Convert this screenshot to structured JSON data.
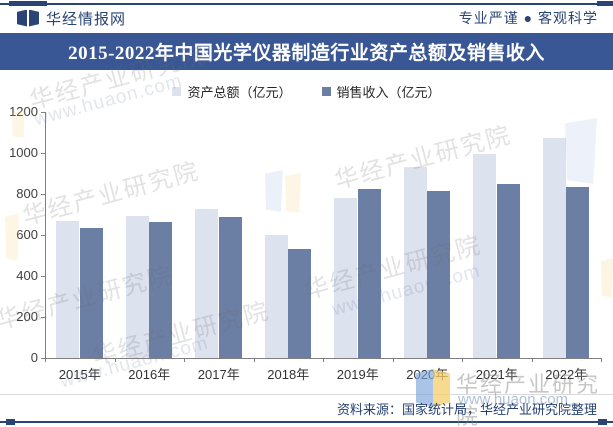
{
  "header": {
    "brand": "华经情报网",
    "tagline": "专业严谨 ● 客观科学"
  },
  "title": "2015-2022年中国光学仪器制造行业资产总额及销售收入",
  "chart_data": {
    "type": "bar",
    "categories": [
      "2015年",
      "2016年",
      "2017年",
      "2018年",
      "2019年",
      "2020年",
      "2021年",
      "2022年"
    ],
    "series": [
      {
        "name": "资产总额（亿元）",
        "color": "#DCE2EE",
        "values": [
          667,
          695,
          727,
          600,
          780,
          934,
          996,
          1073
        ]
      },
      {
        "name": "销售收入（亿元）",
        "color": "#6B7EA4",
        "values": [
          634,
          662,
          686,
          532,
          826,
          814,
          850,
          836
        ]
      }
    ],
    "ylabel": "",
    "xlabel": "",
    "ylim": [
      0,
      1200
    ],
    "yticks": [
      0,
      200,
      400,
      600,
      800,
      1000,
      1200
    ],
    "grid": false,
    "legend_position": "top-center"
  },
  "footer": {
    "source": "资料来源：国家统计局，华经产业研究院整理"
  },
  "watermark": {
    "name": "华经产业研究院",
    "url": "www.huaon.com"
  },
  "colors": {
    "accent_navy": "#2A4575",
    "title_band": "#3A5795",
    "bar_light": "#DCE2EE",
    "bar_dark": "#6B7EA4"
  }
}
